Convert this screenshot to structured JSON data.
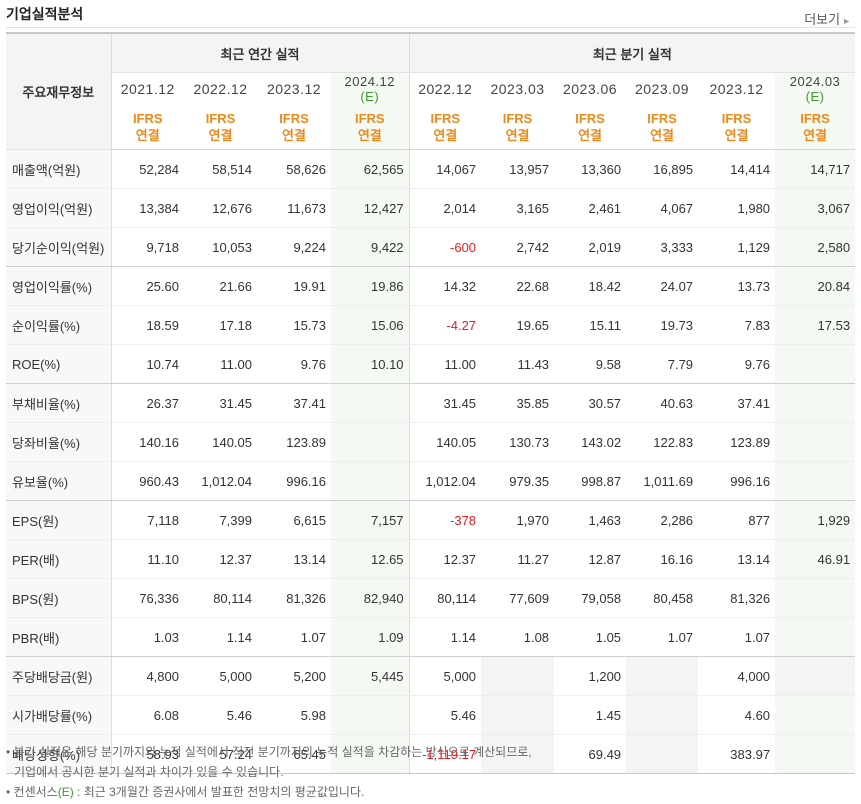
{
  "header": {
    "title": "기업실적분석",
    "more_label": "더보기"
  },
  "table": {
    "corner_label": "주요재무정보",
    "group_annual": "최근 연간 실적",
    "group_quarter": "최근 분기 실적",
    "periods": [
      "2021.12",
      "2022.12",
      "2023.12",
      "2024.12",
      "2022.12",
      "2023.03",
      "2023.06",
      "2023.09",
      "2023.12",
      "2024.03"
    ],
    "estimate_mark": "(E)",
    "ifrs_top": "IFRS",
    "ifrs_bottom": "연결",
    "rows": [
      {
        "label": "매출액(억원)",
        "values": [
          "52,284",
          "58,514",
          "58,626",
          "62,565",
          "14,067",
          "13,957",
          "13,360",
          "16,895",
          "14,414",
          "14,717"
        ]
      },
      {
        "label": "영업이익(억원)",
        "values": [
          "13,384",
          "12,676",
          "11,673",
          "12,427",
          "2,014",
          "3,165",
          "2,461",
          "4,067",
          "1,980",
          "3,067"
        ]
      },
      {
        "label": "당기순이익(억원)",
        "values": [
          "9,718",
          "10,053",
          "9,224",
          "9,422",
          "-600",
          "2,742",
          "2,019",
          "3,333",
          "1,129",
          "2,580"
        ]
      },
      {
        "label": "영업이익률(%)",
        "values": [
          "25.60",
          "21.66",
          "19.91",
          "19.86",
          "14.32",
          "22.68",
          "18.42",
          "24.07",
          "13.73",
          "20.84"
        ]
      },
      {
        "label": "순이익률(%)",
        "values": [
          "18.59",
          "17.18",
          "15.73",
          "15.06",
          "-4.27",
          "19.65",
          "15.11",
          "19.73",
          "7.83",
          "17.53"
        ]
      },
      {
        "label": "ROE(%)",
        "values": [
          "10.74",
          "11.00",
          "9.76",
          "10.10",
          "11.00",
          "11.43",
          "9.58",
          "7.79",
          "9.76",
          ""
        ]
      },
      {
        "label": "부채비율(%)",
        "values": [
          "26.37",
          "31.45",
          "37.41",
          "",
          "31.45",
          "35.85",
          "30.57",
          "40.63",
          "37.41",
          ""
        ]
      },
      {
        "label": "당좌비율(%)",
        "values": [
          "140.16",
          "140.05",
          "123.89",
          "",
          "140.05",
          "130.73",
          "143.02",
          "122.83",
          "123.89",
          ""
        ]
      },
      {
        "label": "유보율(%)",
        "values": [
          "960.43",
          "1,012.04",
          "996.16",
          "",
          "1,012.04",
          "979.35",
          "998.87",
          "1,011.69",
          "996.16",
          ""
        ]
      },
      {
        "label": "EPS(원)",
        "values": [
          "7,118",
          "7,399",
          "6,615",
          "7,157",
          "-378",
          "1,970",
          "1,463",
          "2,286",
          "877",
          "1,929"
        ]
      },
      {
        "label": "PER(배)",
        "values": [
          "11.10",
          "12.37",
          "13.14",
          "12.65",
          "12.37",
          "11.27",
          "12.87",
          "16.16",
          "13.14",
          "46.91"
        ]
      },
      {
        "label": "BPS(원)",
        "values": [
          "76,336",
          "80,114",
          "81,326",
          "82,940",
          "80,114",
          "77,609",
          "79,058",
          "80,458",
          "81,326",
          ""
        ]
      },
      {
        "label": "PBR(배)",
        "values": [
          "1.03",
          "1.14",
          "1.07",
          "1.09",
          "1.14",
          "1.08",
          "1.05",
          "1.07",
          "1.07",
          ""
        ]
      },
      {
        "label": "주당배당금(원)",
        "values": [
          "4,800",
          "5,000",
          "5,200",
          "5,445",
          "5,000",
          "",
          "1,200",
          "",
          "4,000",
          ""
        ]
      },
      {
        "label": "시가배당률(%)",
        "values": [
          "6.08",
          "5.46",
          "5.98",
          "",
          "5.46",
          "",
          "1.45",
          "",
          "4.60",
          ""
        ]
      },
      {
        "label": "배당성향(%)",
        "values": [
          "58.93",
          "57.24",
          "65.45",
          "",
          "-1,119.17",
          "",
          "69.49",
          "",
          "383.97",
          ""
        ]
      }
    ]
  },
  "notes": {
    "line1": "분기 실적은 해당 분기까지의 누적 실적에서 직전 분기까지의 누적 실적을 차감하는 방식으로 계산되므로,",
    "line2": "기업에서 공시한 분기 실적과 차이가 있을 수 있습니다.",
    "line3_prefix": "컨센서스",
    "line3_mark": "(E)",
    "line3_suffix": " : 최근 3개월간 증권사에서 발표한 전망치의 평균값입니다.",
    "bullet": "•"
  },
  "colors": {
    "estimate": "#3d9b2e",
    "ifrs": "#ea8a1c",
    "negative": "#e02020",
    "estimate_shade": "#f4faf3"
  }
}
